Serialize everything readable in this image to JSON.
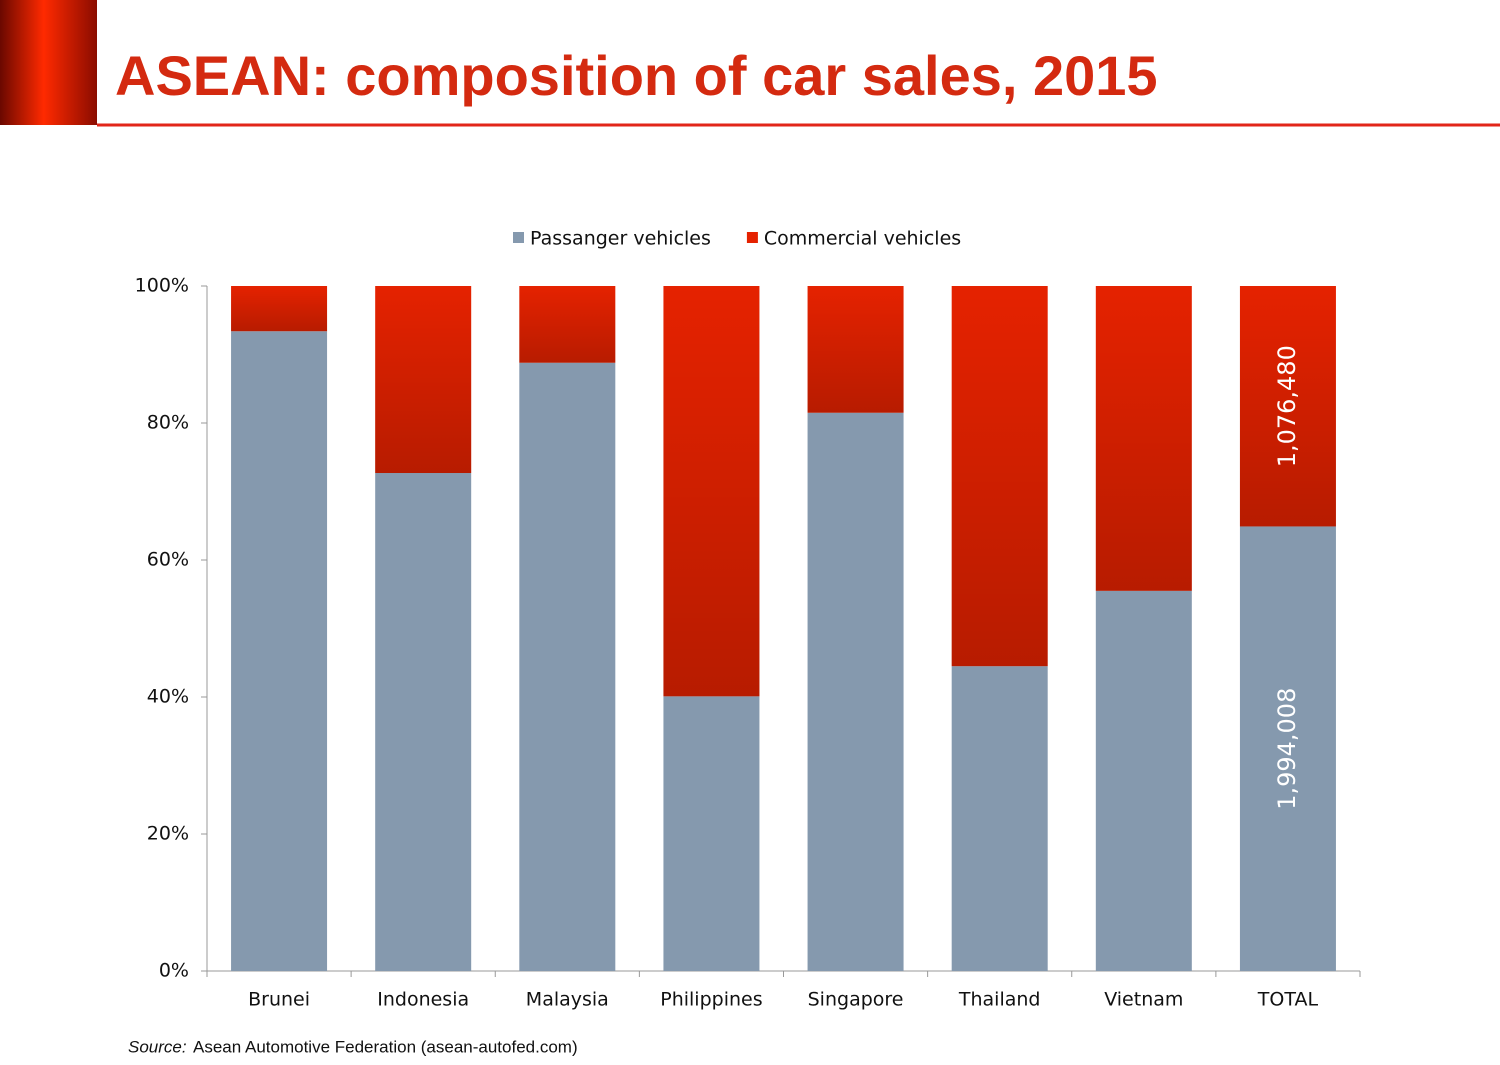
{
  "chart_data": {
    "type": "stacked-bar-100",
    "title": "ASEAN: composition of car sales, 2015",
    "categories": [
      "Brunei",
      "Indonesia",
      "Malaysia",
      "Philippines",
      "Singapore",
      "Thailand",
      "Vietnam",
      "TOTAL"
    ],
    "series": [
      {
        "name": "Passanger vehicles",
        "color": "#8599ae",
        "values": [
          93.4,
          72.7,
          88.8,
          40.1,
          81.5,
          44.5,
          55.5,
          64.9
        ]
      },
      {
        "name": "Commercial vehicles",
        "color": "#e52200",
        "values": [
          6.6,
          27.3,
          11.2,
          59.9,
          18.5,
          55.5,
          44.5,
          35.1
        ]
      }
    ],
    "annotations": [
      "1,994,008",
      "1,076,480"
    ],
    "ylim": [
      0,
      100
    ],
    "yticks": [
      {
        "value": 0,
        "label": "0%"
      },
      {
        "value": 20,
        "label": "20%"
      },
      {
        "value": 40,
        "label": "40%"
      },
      {
        "value": 60,
        "label": "60%"
      },
      {
        "value": 80,
        "label": "80%"
      },
      {
        "value": 100,
        "label": "100%"
      }
    ],
    "legend": "top",
    "source_prefix": "Source:",
    "source": "Asean Automotive Federation (asean-autofed.com)"
  }
}
